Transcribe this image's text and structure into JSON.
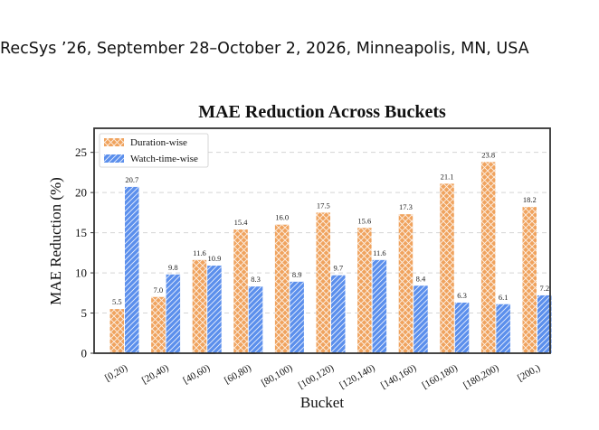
{
  "header": {
    "text": "RecSys ’26, September 28–October 2, 2026, Minneapolis, MN, USA"
  },
  "chart_data": {
    "type": "bar",
    "title": "MAE Reduction Across Buckets",
    "xlabel": "Bucket",
    "ylabel": "MAE Reduction (%)",
    "ylim": [
      0,
      28
    ],
    "yticks": [
      0,
      5,
      10,
      15,
      20,
      25
    ],
    "grid": true,
    "legend_position": "top-left",
    "categories": [
      "[0,20)",
      "[20,40)",
      "[40,60)",
      "[60,80)",
      "[80,100)",
      "[100,120)",
      "[120,140)",
      "[140,160)",
      "[160,180)",
      "[180,200)",
      "[200,)"
    ],
    "series": [
      {
        "name": "Duration-wise",
        "values": [
          5.5,
          7.0,
          11.6,
          15.4,
          16.0,
          17.5,
          15.6,
          17.3,
          21.1,
          23.8,
          18.2
        ],
        "color": "#F0A35E"
      },
      {
        "name": "Watch-time-wise",
        "values": [
          20.7,
          9.8,
          10.9,
          8.3,
          8.9,
          9.7,
          11.6,
          8.4,
          6.3,
          6.1,
          7.2
        ],
        "color": "#5B8FEC"
      }
    ]
  }
}
